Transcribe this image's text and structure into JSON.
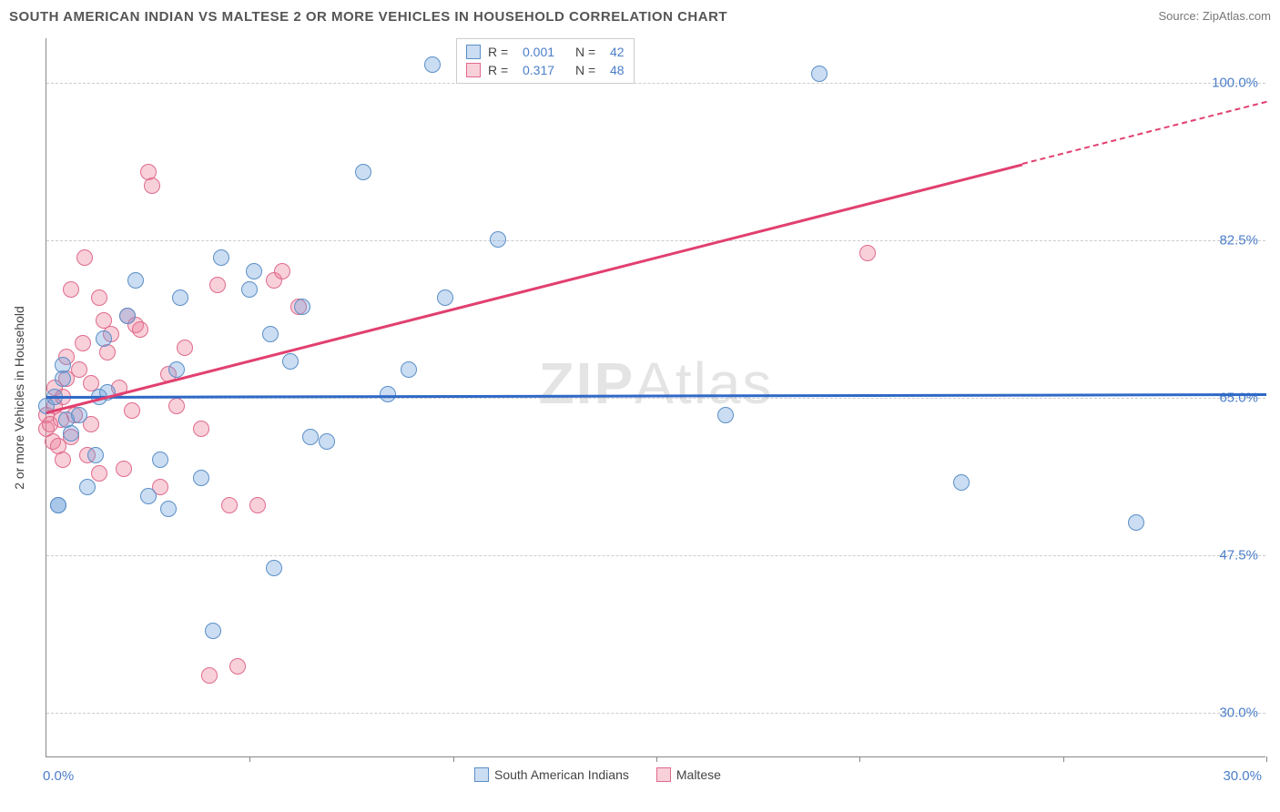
{
  "title": "SOUTH AMERICAN INDIAN VS MALTESE 2 OR MORE VEHICLES IN HOUSEHOLD CORRELATION CHART",
  "source_label": "Source: ",
  "source_value": "ZipAtlas.com",
  "watermark_bold": "ZIP",
  "watermark_light": "Atlas",
  "y_axis_label": "2 or more Vehicles in Household",
  "chart": {
    "type": "scatter",
    "xlim": [
      0,
      30
    ],
    "ylim": [
      25,
      105
    ],
    "y_ticks": [
      {
        "v": 100.0,
        "label": "100.0%"
      },
      {
        "v": 82.5,
        "label": "82.5%"
      },
      {
        "v": 65.0,
        "label": "65.0%"
      },
      {
        "v": 47.5,
        "label": "47.5%"
      },
      {
        "v": 30.0,
        "label": "30.0%"
      }
    ],
    "x_ticks_at": [
      0,
      5,
      10,
      15,
      20,
      25,
      30
    ],
    "x_min_label": "0.0%",
    "x_max_label": "30.0%",
    "background_color": "#ffffff",
    "grid_color": "#cccccc",
    "series": [
      {
        "name": "South American Indians",
        "fill": "rgba(106,158,217,0.35)",
        "stroke": "#5a8fc8",
        "trend_color": "#2f69c7",
        "trend": {
          "y_at_x0": 65.2,
          "y_at_x30": 65.5
        },
        "R": "0.001",
        "N": "42",
        "marker_radius": 9
      },
      {
        "name": "Maltese",
        "fill": "rgba(236,120,150,0.35)",
        "stroke": "#e06a8c",
        "trend_color": "#e1406f",
        "trend": {
          "y_at_x0": 63.5,
          "y_at_x30": 98.0
        },
        "trend_dashed_from_x": 24,
        "R": "0.317",
        "N": "48",
        "marker_radius": 9
      }
    ],
    "points_blue": [
      [
        0.3,
        53.0
      ],
      [
        0.3,
        53.0
      ],
      [
        0.0,
        64.0
      ],
      [
        0.2,
        65.0
      ],
      [
        0.5,
        62.5
      ],
      [
        0.6,
        61.0
      ],
      [
        0.8,
        63.0
      ],
      [
        0.4,
        67.0
      ],
      [
        0.4,
        68.5
      ],
      [
        1.0,
        55.0
      ],
      [
        1.2,
        58.5
      ],
      [
        1.3,
        65.0
      ],
      [
        1.5,
        65.5
      ],
      [
        1.4,
        71.5
      ],
      [
        2.0,
        74.0
      ],
      [
        2.2,
        78.0
      ],
      [
        2.5,
        54.0
      ],
      [
        2.8,
        58.0
      ],
      [
        3.0,
        52.5
      ],
      [
        3.2,
        68.0
      ],
      [
        3.3,
        76.0
      ],
      [
        3.8,
        56.0
      ],
      [
        4.1,
        39.0
      ],
      [
        4.3,
        80.5
      ],
      [
        5.0,
        77.0
      ],
      [
        5.1,
        79.0
      ],
      [
        5.5,
        72.0
      ],
      [
        5.6,
        46.0
      ],
      [
        6.0,
        69.0
      ],
      [
        6.3,
        75.0
      ],
      [
        6.5,
        60.5
      ],
      [
        6.9,
        60.0
      ],
      [
        7.8,
        90.0
      ],
      [
        8.4,
        65.3
      ],
      [
        8.9,
        68.0
      ],
      [
        9.5,
        102.0
      ],
      [
        9.8,
        76.0
      ],
      [
        11.1,
        82.5
      ],
      [
        16.7,
        63.0
      ],
      [
        19.0,
        101.0
      ],
      [
        22.5,
        55.5
      ],
      [
        26.8,
        51.0
      ]
    ],
    "points_pink": [
      [
        0.0,
        61.5
      ],
      [
        0.0,
        63.0
      ],
      [
        0.1,
        62.0
      ],
      [
        0.15,
        60.0
      ],
      [
        0.2,
        66.0
      ],
      [
        0.2,
        64.0
      ],
      [
        0.3,
        59.5
      ],
      [
        0.35,
        62.5
      ],
      [
        0.4,
        58.0
      ],
      [
        0.4,
        65.0
      ],
      [
        0.5,
        69.5
      ],
      [
        0.5,
        67.0
      ],
      [
        0.6,
        60.5
      ],
      [
        0.6,
        77.0
      ],
      [
        0.7,
        63.0
      ],
      [
        0.8,
        68.0
      ],
      [
        0.9,
        71.0
      ],
      [
        0.95,
        80.5
      ],
      [
        1.0,
        58.5
      ],
      [
        1.1,
        62.0
      ],
      [
        1.1,
        66.5
      ],
      [
        1.3,
        56.5
      ],
      [
        1.3,
        76.0
      ],
      [
        1.5,
        70.0
      ],
      [
        1.6,
        72.0
      ],
      [
        1.8,
        66.0
      ],
      [
        1.9,
        57.0
      ],
      [
        2.0,
        74.0
      ],
      [
        2.1,
        63.5
      ],
      [
        2.2,
        73.0
      ],
      [
        2.3,
        72.5
      ],
      [
        2.5,
        90.0
      ],
      [
        2.6,
        88.5
      ],
      [
        2.8,
        55.0
      ],
      [
        3.0,
        67.5
      ],
      [
        3.2,
        64.0
      ],
      [
        3.4,
        70.5
      ],
      [
        3.8,
        61.5
      ],
      [
        4.5,
        53.0
      ],
      [
        4.7,
        35.0
      ],
      [
        5.2,
        53.0
      ],
      [
        5.6,
        78.0
      ],
      [
        5.8,
        79.0
      ],
      [
        6.2,
        75.0
      ],
      [
        4.0,
        34.0
      ],
      [
        4.2,
        77.5
      ],
      [
        20.2,
        81.0
      ],
      [
        1.4,
        73.5
      ]
    ]
  },
  "legend_bottom": {
    "series1": "South American Indians",
    "series2": "Maltese"
  },
  "legend_top_labels": {
    "R": "R =",
    "N": "N ="
  }
}
